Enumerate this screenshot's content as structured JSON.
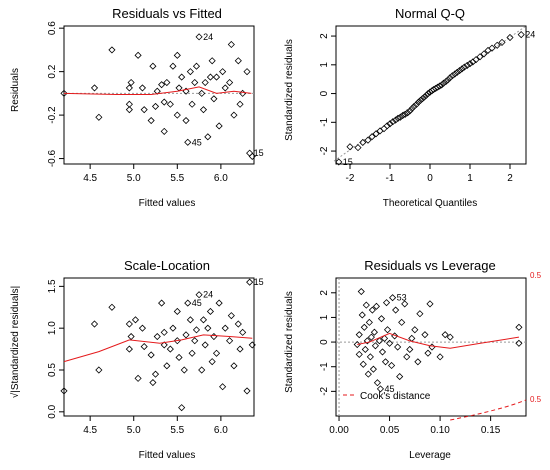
{
  "chart_data": [
    {
      "id": "p1",
      "type": "scatter",
      "title": "Residuals vs Fitted",
      "xlabel": "Fitted values",
      "ylabel": "Residuals",
      "xlim": [
        4.2,
        6.38
      ],
      "ylim": [
        -0.65,
        0.62
      ],
      "xticks": [
        4.5,
        5.0,
        5.5,
        6.0
      ],
      "xtick_labels": [
        "4.5",
        "5.0",
        "5.5",
        "6.0"
      ],
      "yticks": [
        -0.6,
        -0.2,
        0.2,
        0.6
      ],
      "ytick_labels": [
        "-0.6",
        "-0.2",
        "0.2",
        "0.6"
      ],
      "hline": 0,
      "points": [
        [
          4.2,
          0.0
        ],
        [
          4.55,
          0.05
        ],
        [
          4.6,
          -0.22
        ],
        [
          4.75,
          0.4
        ],
        [
          4.95,
          -0.1
        ],
        [
          4.95,
          -0.15
        ],
        [
          4.95,
          0.05
        ],
        [
          4.97,
          0.1
        ],
        [
          5.05,
          0.35
        ],
        [
          5.1,
          0.05
        ],
        [
          5.12,
          -0.15
        ],
        [
          5.2,
          -0.25
        ],
        [
          5.22,
          0.25
        ],
        [
          5.25,
          -0.12
        ],
        [
          5.27,
          0.02
        ],
        [
          5.32,
          0.08
        ],
        [
          5.35,
          -0.08
        ],
        [
          5.35,
          -0.35
        ],
        [
          5.38,
          0.1
        ],
        [
          5.42,
          -0.1
        ],
        [
          5.45,
          0.25
        ],
        [
          5.5,
          0.35
        ],
        [
          5.5,
          -0.2
        ],
        [
          5.52,
          0.05
        ],
        [
          5.55,
          0.15
        ],
        [
          5.6,
          0.02
        ],
        [
          5.6,
          -0.25
        ],
        [
          5.62,
          -0.45
        ],
        [
          5.65,
          0.2
        ],
        [
          5.67,
          -0.1
        ],
        [
          5.7,
          0.1
        ],
        [
          5.72,
          0.25
        ],
        [
          5.75,
          0.52
        ],
        [
          5.78,
          0.0
        ],
        [
          5.8,
          -0.15
        ],
        [
          5.82,
          0.1
        ],
        [
          5.85,
          -0.4
        ],
        [
          5.88,
          0.15
        ],
        [
          5.9,
          0.3
        ],
        [
          5.92,
          -0.05
        ],
        [
          5.95,
          0.15
        ],
        [
          5.98,
          -0.3
        ],
        [
          6.02,
          0.2
        ],
        [
          6.05,
          0.05
        ],
        [
          6.1,
          0.1
        ],
        [
          6.12,
          0.45
        ],
        [
          6.15,
          -0.2
        ],
        [
          6.2,
          0.3
        ],
        [
          6.22,
          -0.1
        ],
        [
          6.25,
          0.0
        ],
        [
          6.3,
          0.2
        ],
        [
          6.33,
          -0.55
        ],
        [
          6.36,
          -0.58
        ]
      ],
      "smooth": [
        [
          4.2,
          0.0
        ],
        [
          4.8,
          -0.01
        ],
        [
          5.2,
          -0.01
        ],
        [
          5.5,
          0.02
        ],
        [
          5.75,
          0.06
        ],
        [
          5.95,
          0.0
        ],
        [
          6.15,
          0.02
        ],
        [
          6.35,
          0.0
        ]
      ],
      "labels": [
        {
          "text": "24",
          "x": 5.75,
          "y": 0.52
        },
        {
          "text": "45",
          "x": 5.62,
          "y": -0.45
        },
        {
          "text": "15",
          "x": 6.33,
          "y": -0.55
        }
      ]
    },
    {
      "id": "p2",
      "type": "scatter",
      "title": "Normal Q-Q",
      "xlabel": "Theoretical Quantiles",
      "ylabel": "Standardized residuals",
      "xlim": [
        -2.35,
        2.4
      ],
      "ylim": [
        -2.45,
        2.35
      ],
      "xticks": [
        -2,
        -1,
        0,
        1,
        2
      ],
      "xtick_labels": [
        "-2",
        "-1",
        "0",
        "1",
        "2"
      ],
      "yticks": [
        -2,
        -1,
        0,
        1,
        2
      ],
      "ytick_labels": [
        "-2",
        "-1",
        "0",
        "1",
        "2"
      ],
      "refline": [
        [
          -2.4,
          -2.35
        ],
        [
          2.4,
          2.35
        ]
      ],
      "points": [
        [
          -2.28,
          -2.38
        ],
        [
          -2.0,
          -1.85
        ],
        [
          -1.8,
          -1.88
        ],
        [
          -1.68,
          -1.7
        ],
        [
          -1.55,
          -1.62
        ],
        [
          -1.45,
          -1.5
        ],
        [
          -1.35,
          -1.4
        ],
        [
          -1.25,
          -1.3
        ],
        [
          -1.15,
          -1.22
        ],
        [
          -1.07,
          -1.12
        ],
        [
          -1.0,
          -1.05
        ],
        [
          -0.93,
          -0.98
        ],
        [
          -0.86,
          -0.92
        ],
        [
          -0.8,
          -0.86
        ],
        [
          -0.74,
          -0.82
        ],
        [
          -0.68,
          -0.76
        ],
        [
          -0.62,
          -0.72
        ],
        [
          -0.56,
          -0.67
        ],
        [
          -0.5,
          -0.6
        ],
        [
          -0.45,
          -0.52
        ],
        [
          -0.4,
          -0.45
        ],
        [
          -0.34,
          -0.38
        ],
        [
          -0.29,
          -0.3
        ],
        [
          -0.24,
          -0.24
        ],
        [
          -0.19,
          -0.18
        ],
        [
          -0.14,
          -0.12
        ],
        [
          -0.09,
          -0.06
        ],
        [
          -0.05,
          0.0
        ],
        [
          0.0,
          0.05
        ],
        [
          0.05,
          0.1
        ],
        [
          0.09,
          0.14
        ],
        [
          0.14,
          0.18
        ],
        [
          0.19,
          0.22
        ],
        [
          0.24,
          0.26
        ],
        [
          0.29,
          0.3
        ],
        [
          0.34,
          0.36
        ],
        [
          0.4,
          0.42
        ],
        [
          0.45,
          0.48
        ],
        [
          0.5,
          0.55
        ],
        [
          0.56,
          0.62
        ],
        [
          0.62,
          0.68
        ],
        [
          0.68,
          0.74
        ],
        [
          0.74,
          0.8
        ],
        [
          0.8,
          0.86
        ],
        [
          0.86,
          0.92
        ],
        [
          0.93,
          0.98
        ],
        [
          1.0,
          1.04
        ],
        [
          1.07,
          1.1
        ],
        [
          1.15,
          1.18
        ],
        [
          1.25,
          1.28
        ],
        [
          1.35,
          1.38
        ],
        [
          1.45,
          1.5
        ],
        [
          1.55,
          1.58
        ],
        [
          1.68,
          1.68
        ],
        [
          1.8,
          1.78
        ],
        [
          2.0,
          1.95
        ],
        [
          2.28,
          2.05
        ]
      ],
      "labels": [
        {
          "text": "24",
          "x": 2.28,
          "y": 2.05
        },
        {
          "text": "15",
          "x": -2.28,
          "y": -2.38
        }
      ]
    },
    {
      "id": "p3",
      "type": "scatter",
      "title": "Scale-Location",
      "xlabel": "Fitted values",
      "ylabel": "√|Standardized residuals|",
      "xlim": [
        4.2,
        6.38
      ],
      "ylim": [
        -0.05,
        1.6
      ],
      "xticks": [
        4.5,
        5.0,
        5.5,
        6.0
      ],
      "xtick_labels": [
        "4.5",
        "5.0",
        "5.5",
        "6.0"
      ],
      "yticks": [
        0.0,
        0.5,
        1.0,
        1.5
      ],
      "ytick_labels": [
        "0.0",
        "0.5",
        "1.0",
        "1.5"
      ],
      "points": [
        [
          4.2,
          0.25
        ],
        [
          4.55,
          1.05
        ],
        [
          4.6,
          0.5
        ],
        [
          4.75,
          1.25
        ],
        [
          4.95,
          0.75
        ],
        [
          4.95,
          1.05
        ],
        [
          4.97,
          0.9
        ],
        [
          5.02,
          1.1
        ],
        [
          5.05,
          0.4
        ],
        [
          5.1,
          1.0
        ],
        [
          5.12,
          0.78
        ],
        [
          5.2,
          0.68
        ],
        [
          5.22,
          0.35
        ],
        [
          5.25,
          0.45
        ],
        [
          5.27,
          0.9
        ],
        [
          5.32,
          1.3
        ],
        [
          5.35,
          0.95
        ],
        [
          5.35,
          0.8
        ],
        [
          5.38,
          0.55
        ],
        [
          5.42,
          0.75
        ],
        [
          5.45,
          1.0
        ],
        [
          5.5,
          1.2
        ],
        [
          5.5,
          0.85
        ],
        [
          5.52,
          0.65
        ],
        [
          5.55,
          0.05
        ],
        [
          5.58,
          0.5
        ],
        [
          5.6,
          0.92
        ],
        [
          5.62,
          1.3
        ],
        [
          5.65,
          1.1
        ],
        [
          5.67,
          0.7
        ],
        [
          5.7,
          0.85
        ],
        [
          5.72,
          0.98
        ],
        [
          5.75,
          1.4
        ],
        [
          5.78,
          0.5
        ],
        [
          5.8,
          1.1
        ],
        [
          5.82,
          0.8
        ],
        [
          5.85,
          1.0
        ],
        [
          5.88,
          1.2
        ],
        [
          5.9,
          0.6
        ],
        [
          5.92,
          0.9
        ],
        [
          5.95,
          0.7
        ],
        [
          5.98,
          1.3
        ],
        [
          6.02,
          0.3
        ],
        [
          6.05,
          1.0
        ],
        [
          6.1,
          0.85
        ],
        [
          6.12,
          1.15
        ],
        [
          6.15,
          0.55
        ],
        [
          6.2,
          1.05
        ],
        [
          6.22,
          0.75
        ],
        [
          6.25,
          0.95
        ],
        [
          6.3,
          0.25
        ],
        [
          6.33,
          1.55
        ],
        [
          6.36,
          0.8
        ]
      ],
      "smooth": [
        [
          4.2,
          0.6
        ],
        [
          4.6,
          0.72
        ],
        [
          4.95,
          0.86
        ],
        [
          5.3,
          0.82
        ],
        [
          5.55,
          0.86
        ],
        [
          5.8,
          0.92
        ],
        [
          6.1,
          0.9
        ],
        [
          6.36,
          0.88
        ]
      ],
      "labels": [
        {
          "text": "24",
          "x": 5.75,
          "y": 1.4
        },
        {
          "text": "45",
          "x": 5.62,
          "y": 1.3
        },
        {
          "text": "15",
          "x": 6.33,
          "y": 1.55
        }
      ]
    },
    {
      "id": "p4",
      "type": "scatter",
      "title": "Residuals vs Leverage",
      "xlabel": "Leverage",
      "ylabel": "Standardized residuals",
      "xlim": [
        -0.003,
        0.185
      ],
      "ylim": [
        -3.0,
        2.6
      ],
      "xticks": [
        0.0,
        0.05,
        0.1,
        0.15
      ],
      "xtick_labels": [
        "0.00",
        "0.05",
        "0.10",
        "0.15"
      ],
      "yticks": [
        -2,
        -1,
        0,
        1,
        2
      ],
      "ytick_labels": [
        "-2",
        "-1",
        "0",
        "1",
        "2"
      ],
      "hline": 0,
      "vline": 0,
      "points": [
        [
          0.018,
          -0.1
        ],
        [
          0.02,
          0.3
        ],
        [
          0.02,
          -0.5
        ],
        [
          0.022,
          2.05
        ],
        [
          0.023,
          1.1
        ],
        [
          0.024,
          -0.9
        ],
        [
          0.025,
          0.6
        ],
        [
          0.026,
          -0.3
        ],
        [
          0.027,
          1.5
        ],
        [
          0.028,
          0.05
        ],
        [
          0.029,
          -1.3
        ],
        [
          0.03,
          0.8
        ],
        [
          0.031,
          -0.6
        ],
        [
          0.032,
          0.2
        ],
        [
          0.033,
          1.3
        ],
        [
          0.034,
          -1.1
        ],
        [
          0.035,
          0.4
        ],
        [
          0.036,
          -0.15
        ],
        [
          0.037,
          1.45
        ],
        [
          0.038,
          -1.65
        ],
        [
          0.04,
          0.05
        ],
        [
          0.041,
          -1.9
        ],
        [
          0.042,
          0.95
        ],
        [
          0.043,
          -0.4
        ],
        [
          0.045,
          0.15
        ],
        [
          0.046,
          -0.8
        ],
        [
          0.047,
          1.6
        ],
        [
          0.048,
          0.5
        ],
        [
          0.05,
          -0.05
        ],
        [
          0.052,
          -0.95
        ],
        [
          0.053,
          1.8
        ],
        [
          0.055,
          0.25
        ],
        [
          0.056,
          1.3
        ],
        [
          0.058,
          -0.2
        ],
        [
          0.06,
          -1.4
        ],
        [
          0.062,
          0.8
        ],
        [
          0.065,
          1.55
        ],
        [
          0.067,
          -0.6
        ],
        [
          0.07,
          -0.3
        ],
        [
          0.072,
          0.15
        ],
        [
          0.075,
          0.5
        ],
        [
          0.078,
          -0.8
        ],
        [
          0.08,
          1.15
        ],
        [
          0.085,
          0.3
        ],
        [
          0.088,
          -0.45
        ],
        [
          0.09,
          1.55
        ],
        [
          0.092,
          -0.2
        ],
        [
          0.1,
          -0.6
        ],
        [
          0.105,
          0.3
        ],
        [
          0.11,
          0.2
        ],
        [
          0.178,
          0.6
        ],
        [
          0.178,
          -0.05
        ]
      ],
      "smooth": [
        [
          0.018,
          -0.1
        ],
        [
          0.03,
          0.0
        ],
        [
          0.05,
          0.35
        ],
        [
          0.07,
          0.05
        ],
        [
          0.09,
          -0.15
        ],
        [
          0.11,
          -0.25
        ],
        [
          0.14,
          -0.05
        ],
        [
          0.178,
          0.2
        ]
      ],
      "labels": [
        {
          "text": "45",
          "x": 0.041,
          "y": -1.9
        },
        {
          "text": "53",
          "x": 0.053,
          "y": 1.8
        }
      ],
      "cooks_distance": {
        "legend": "Cook's distance",
        "right_ticks": [
          "0.5",
          "0.5"
        ]
      }
    }
  ]
}
